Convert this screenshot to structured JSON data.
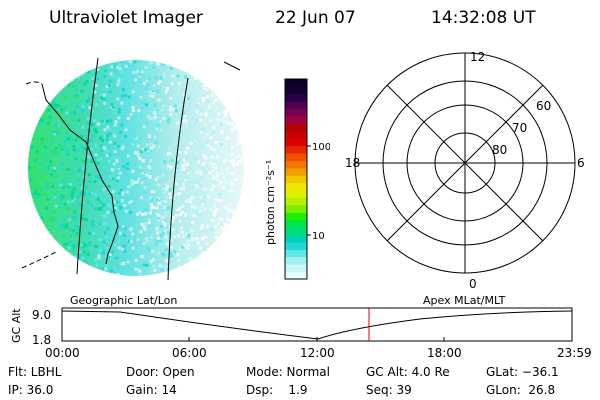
{
  "header": {
    "instrument": "Ultraviolet Imager",
    "date": "22 Jun 07",
    "time": "14:32:08 UT"
  },
  "colorbar": {
    "unit_label": "photon cm⁻²s⁻¹",
    "ticks": [
      "100",
      "10"
    ],
    "colors": [
      "#e6ffff",
      "#c8f5f5",
      "#a0f0f0",
      "#60e6e6",
      "#20d7d7",
      "#00d2b4",
      "#00dc78",
      "#00e650",
      "#20f000",
      "#78f000",
      "#b4f000",
      "#dcf000",
      "#f0e600",
      "#f0c800",
      "#f0a000",
      "#f07800",
      "#f05000",
      "#e62800",
      "#dc0000",
      "#c80000",
      "#b40000",
      "#a0003c",
      "#780050",
      "#500050",
      "#280046",
      "#140032",
      "#0a0028"
    ]
  },
  "geo_panel": {
    "label": "Geographic Lat/Lon"
  },
  "polar_panel": {
    "label": "Apex MLat/MLT",
    "mlt_labels": {
      "top": "12",
      "left": "18",
      "right": "6",
      "bottom": "0"
    },
    "lat_labels": [
      "60",
      "70",
      "80"
    ]
  },
  "altitude_plot": {
    "ylabel": "GC Alt",
    "yticks": [
      "9.0",
      "1.8"
    ],
    "xticks": [
      "00:00",
      "06:00",
      "12:00",
      "18:00",
      "23:59"
    ],
    "marker_time": "14:32",
    "marker_color": "#e00000"
  },
  "info": {
    "row1": {
      "flt": "Flt: LBHL",
      "door": "Door: Open",
      "mode": "Mode: Normal",
      "gcalt": "GC Alt: 4.0 Re",
      "glat": "GLat: −36.1"
    },
    "row2": {
      "ip": "IP: 36.0",
      "gain": "Gain: 14",
      "dsp": "Dsp:    1.9",
      "seq": "Seq: 39",
      "glon": "GLon:  26.8"
    }
  }
}
